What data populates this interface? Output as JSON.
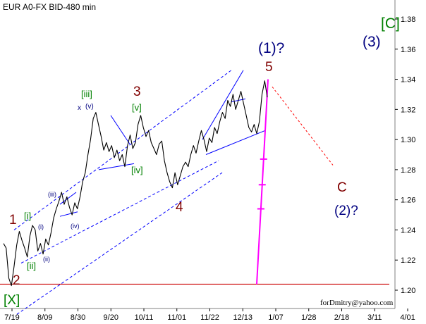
{
  "chart_data": {
    "type": "line",
    "title": "EUR A0-FX BID-480 min",
    "watermark": "forDmitry@yahoo.com",
    "ylim": [
      1.195,
      1.392
    ],
    "y_ticks": [
      "1.20",
      "1.22",
      "1.24",
      "1.26",
      "1.28",
      "1.30",
      "1.32",
      "1.34",
      "1.36",
      "1.38"
    ],
    "x_ticks": [
      "7/19",
      "8/09",
      "8/30",
      "9/20",
      "10/11",
      "11/01",
      "11/22",
      "12/13",
      "1/07",
      "1/28",
      "2/18",
      "3/11",
      "4/01"
    ],
    "series": [
      {
        "values": [
          [
            0,
            1.231
          ],
          [
            1,
            1.228
          ],
          [
            2,
            1.208
          ],
          [
            3,
            1.203
          ],
          [
            4,
            1.216
          ],
          [
            5,
            1.23
          ],
          [
            6,
            1.239
          ],
          [
            7,
            1.233
          ],
          [
            8,
            1.228
          ],
          [
            9,
            1.222
          ],
          [
            10,
            1.236
          ],
          [
            11,
            1.243
          ],
          [
            12,
            1.24
          ],
          [
            13,
            1.226
          ],
          [
            14,
            1.231
          ],
          [
            15,
            1.224
          ],
          [
            16,
            1.234
          ],
          [
            17,
            1.23
          ],
          [
            18,
            1.238
          ],
          [
            19,
            1.248
          ],
          [
            20,
            1.254
          ],
          [
            21,
            1.259
          ],
          [
            22,
            1.265
          ],
          [
            23,
            1.257
          ],
          [
            24,
            1.262
          ],
          [
            25,
            1.255
          ],
          [
            26,
            1.25
          ],
          [
            27,
            1.258
          ],
          [
            28,
            1.254
          ],
          [
            29,
            1.262
          ],
          [
            30,
            1.272
          ],
          [
            31,
            1.278
          ],
          [
            32,
            1.29
          ],
          [
            33,
            1.3
          ],
          [
            34,
            1.314
          ],
          [
            35,
            1.318
          ],
          [
            36,
            1.31
          ],
          [
            37,
            1.302
          ],
          [
            38,
            1.293
          ],
          [
            39,
            1.298
          ],
          [
            40,
            1.292
          ],
          [
            41,
            1.296
          ],
          [
            42,
            1.288
          ],
          [
            43,
            1.293
          ],
          [
            44,
            1.286
          ],
          [
            45,
            1.29
          ],
          [
            46,
            1.282
          ],
          [
            47,
            1.296
          ],
          [
            48,
            1.303
          ],
          [
            49,
            1.294
          ],
          [
            50,
            1.298
          ],
          [
            51,
            1.31
          ],
          [
            52,
            1.316
          ],
          [
            53,
            1.308
          ],
          [
            54,
            1.302
          ],
          [
            55,
            1.306
          ],
          [
            56,
            1.298
          ],
          [
            57,
            1.294
          ],
          [
            58,
            1.29
          ],
          [
            59,
            1.297
          ],
          [
            60,
            1.299
          ],
          [
            61,
            1.286
          ],
          [
            62,
            1.278
          ],
          [
            63,
            1.272
          ],
          [
            64,
            1.268
          ],
          [
            65,
            1.278
          ],
          [
            66,
            1.27
          ],
          [
            67,
            1.276
          ],
          [
            68,
            1.282
          ],
          [
            69,
            1.285
          ],
          [
            70,
            1.282
          ],
          [
            71,
            1.29
          ],
          [
            72,
            1.296
          ],
          [
            73,
            1.291
          ],
          [
            74,
            1.299
          ],
          [
            75,
            1.306
          ],
          [
            76,
            1.3
          ],
          [
            77,
            1.292
          ],
          [
            78,
            1.301
          ],
          [
            79,
            1.298
          ],
          [
            80,
            1.308
          ],
          [
            81,
            1.304
          ],
          [
            82,
            1.312
          ],
          [
            83,
            1.318
          ],
          [
            84,
            1.314
          ],
          [
            85,
            1.326
          ],
          [
            86,
            1.322
          ],
          [
            87,
            1.33
          ],
          [
            88,
            1.32
          ],
          [
            89,
            1.326
          ],
          [
            90,
            1.332
          ],
          [
            91,
            1.324
          ],
          [
            92,
            1.316
          ],
          [
            93,
            1.308
          ],
          [
            94,
            1.305
          ],
          [
            95,
            1.31
          ],
          [
            96,
            1.304
          ],
          [
            97,
            1.312
          ],
          [
            98,
            1.33
          ],
          [
            99,
            1.339
          ],
          [
            100,
            1.328
          ]
        ]
      }
    ],
    "wave_labels": [
      {
        "text": "[C]",
        "color": "#008000"
      },
      {
        "text": "(3)",
        "color": "#000080"
      },
      {
        "text": "(1)?",
        "color": "#000080"
      },
      {
        "text": "5",
        "color": "#800000"
      },
      {
        "text": "3",
        "color": "#800000"
      },
      {
        "text": "4",
        "color": "#800000"
      },
      {
        "text": "1",
        "color": "#800000"
      },
      {
        "text": "2",
        "color": "#800000"
      },
      {
        "text": "[X]",
        "color": "#008000"
      },
      {
        "text": "C",
        "color": "#800000"
      },
      {
        "text": "(2)?",
        "color": "#000080"
      },
      {
        "text": "[iii]",
        "color": "#008000"
      },
      {
        "text": "[v]",
        "color": "#008000"
      },
      {
        "text": "[iv]",
        "color": "#008000"
      },
      {
        "text": "[i]",
        "color": "#008000"
      },
      {
        "text": "[ii]",
        "color": "#008000"
      },
      {
        "text": "x",
        "color": "#000080"
      },
      {
        "text": "(v)",
        "color": "#000080"
      },
      {
        "text": "(iii)",
        "color": "#000080"
      },
      {
        "text": "(iv)",
        "color": "#000080"
      },
      {
        "text": "(i)",
        "color": "#000080"
      },
      {
        "text": "(ii)",
        "color": "#000080"
      }
    ],
    "colors": {
      "price": "#000000",
      "channel": "#0000ff",
      "fib": "#ff00ff",
      "support": "#cc0000",
      "projection": "#ff0000",
      "frame": "#808080"
    },
    "grid": false,
    "legend": "none",
    "xlabel": "",
    "ylabel": ""
  }
}
